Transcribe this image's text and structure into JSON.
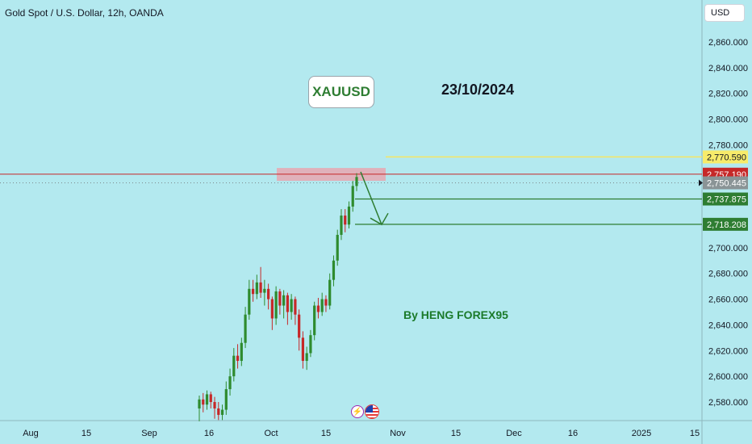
{
  "header": {
    "title": "Gold Spot / U.S. Dollar, 12h, OANDA",
    "currency": "USD"
  },
  "annotations": {
    "symbol_badge": "XAUUSD",
    "date_note": "23/10/2024",
    "author": "By HENG FOREX95"
  },
  "icons": [
    "lightning-icon",
    "us-flag-icon"
  ],
  "colors": {
    "background": "#b3e9ef",
    "bull": "#2e8b2e",
    "bear": "#c62828",
    "resistance_line": "#c62828",
    "target_line": "#2e7d32",
    "yellow_line": "#f5e663",
    "zone": "#e8a7b0"
  },
  "chart_data": {
    "type": "candlestick",
    "title": "Gold Spot / U.S. Dollar, 12h, OANDA",
    "ylim": [
      2566,
      2875
    ],
    "y_ticks": [
      2580,
      2600,
      2620,
      2640,
      2660,
      2680,
      2700,
      2720,
      2740,
      2760,
      2780,
      2800,
      2820,
      2840,
      2860
    ],
    "y_tick_labels": [
      "2,580.000",
      "2,600.000",
      "2,620.000",
      "2,640.000",
      "2,660.000",
      "2,680.000",
      "2,700.000",
      "2,720.000",
      "2,740.000",
      "2,760.000",
      "2,780.000",
      "2,800.000",
      "2,820.000",
      "2,840.000",
      "2,860.000"
    ],
    "x_tick_labels": [
      "Aug",
      "15",
      "Sep",
      "16",
      "Oct",
      "15",
      "Nov",
      "15",
      "Dec",
      "16",
      "2025",
      "15"
    ],
    "price_levels": [
      {
        "name": "yellow-level",
        "value": 2770.59,
        "label": "2,770.590"
      },
      {
        "name": "resistance-level",
        "value": 2757.19,
        "label": "2,757.190"
      },
      {
        "name": "current-price",
        "value": 2750.445,
        "label": "2,750.445"
      },
      {
        "name": "target-1",
        "value": 2737.875,
        "label": "2,737.875"
      },
      {
        "name": "target-2",
        "value": 2718.208,
        "label": "2,718.208"
      }
    ],
    "resistance_zone": {
      "low": 2752,
      "high": 2762
    },
    "candles": [
      {
        "o": 2575,
        "c": 2582,
        "h": 2585,
        "l": 2565
      },
      {
        "o": 2582,
        "c": 2578,
        "h": 2587,
        "l": 2572
      },
      {
        "o": 2578,
        "c": 2586,
        "h": 2589,
        "l": 2574
      },
      {
        "o": 2586,
        "c": 2580,
        "h": 2588,
        "l": 2575
      },
      {
        "o": 2580,
        "c": 2575,
        "h": 2584,
        "l": 2567
      },
      {
        "o": 2575,
        "c": 2570,
        "h": 2580,
        "l": 2566
      },
      {
        "o": 2570,
        "c": 2574,
        "h": 2578,
        "l": 2566
      },
      {
        "o": 2574,
        "c": 2590,
        "h": 2596,
        "l": 2570
      },
      {
        "o": 2590,
        "c": 2600,
        "h": 2606,
        "l": 2585
      },
      {
        "o": 2600,
        "c": 2616,
        "h": 2622,
        "l": 2596
      },
      {
        "o": 2616,
        "c": 2612,
        "h": 2625,
        "l": 2606
      },
      {
        "o": 2612,
        "c": 2626,
        "h": 2630,
        "l": 2608
      },
      {
        "o": 2626,
        "c": 2648,
        "h": 2654,
        "l": 2622
      },
      {
        "o": 2648,
        "c": 2668,
        "h": 2675,
        "l": 2644
      },
      {
        "o": 2668,
        "c": 2664,
        "h": 2675,
        "l": 2658
      },
      {
        "o": 2664,
        "c": 2673,
        "h": 2679,
        "l": 2660
      },
      {
        "o": 2673,
        "c": 2665,
        "h": 2685,
        "l": 2661
      },
      {
        "o": 2665,
        "c": 2668,
        "h": 2675,
        "l": 2655
      },
      {
        "o": 2668,
        "c": 2660,
        "h": 2672,
        "l": 2652
      },
      {
        "o": 2660,
        "c": 2645,
        "h": 2662,
        "l": 2636
      },
      {
        "o": 2645,
        "c": 2666,
        "h": 2670,
        "l": 2640
      },
      {
        "o": 2666,
        "c": 2655,
        "h": 2668,
        "l": 2648
      },
      {
        "o": 2655,
        "c": 2663,
        "h": 2667,
        "l": 2645
      },
      {
        "o": 2663,
        "c": 2650,
        "h": 2665,
        "l": 2640
      },
      {
        "o": 2650,
        "c": 2660,
        "h": 2664,
        "l": 2644
      },
      {
        "o": 2660,
        "c": 2648,
        "h": 2662,
        "l": 2640
      },
      {
        "o": 2648,
        "c": 2630,
        "h": 2652,
        "l": 2620
      },
      {
        "o": 2630,
        "c": 2612,
        "h": 2635,
        "l": 2606
      },
      {
        "o": 2612,
        "c": 2618,
        "h": 2623,
        "l": 2605
      },
      {
        "o": 2618,
        "c": 2632,
        "h": 2636,
        "l": 2615
      },
      {
        "o": 2632,
        "c": 2655,
        "h": 2658,
        "l": 2628
      },
      {
        "o": 2655,
        "c": 2650,
        "h": 2661,
        "l": 2645
      },
      {
        "o": 2650,
        "c": 2660,
        "h": 2665,
        "l": 2647
      },
      {
        "o": 2660,
        "c": 2655,
        "h": 2663,
        "l": 2650
      },
      {
        "o": 2655,
        "c": 2675,
        "h": 2680,
        "l": 2652
      },
      {
        "o": 2675,
        "c": 2690,
        "h": 2694,
        "l": 2670
      },
      {
        "o": 2690,
        "c": 2710,
        "h": 2714,
        "l": 2686
      },
      {
        "o": 2710,
        "c": 2725,
        "h": 2730,
        "l": 2706
      },
      {
        "o": 2725,
        "c": 2718,
        "h": 2730,
        "l": 2712
      },
      {
        "o": 2718,
        "c": 2732,
        "h": 2736,
        "l": 2715
      },
      {
        "o": 2732,
        "c": 2748,
        "h": 2752,
        "l": 2728
      },
      {
        "o": 2748,
        "c": 2755,
        "h": 2758,
        "l": 2744
      }
    ]
  }
}
